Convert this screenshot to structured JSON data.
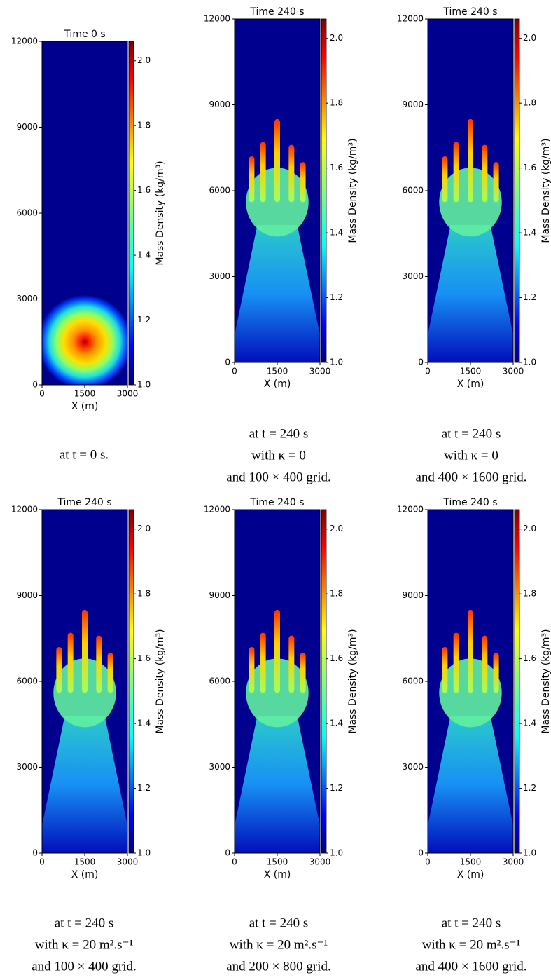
{
  "panels": [
    {
      "title": "Time 0 s",
      "x_label": "X (m)",
      "colorbar_label": "Mass Density (kg/m³)",
      "xlim": [
        0,
        3000
      ],
      "xticks": [
        0,
        1500,
        3000
      ],
      "ylim": [
        0,
        12000
      ],
      "yticks": [
        0,
        3000,
        6000,
        9000,
        12000
      ],
      "clim": [
        1.0,
        2.06
      ],
      "cticks": [
        {
          "value": 1.0,
          "label": "1.0"
        },
        1.2,
        1.4,
        1.6,
        1.8,
        {
          "value": 2.0,
          "label": "2.0"
        }
      ],
      "caption": [
        "at t = 0 s."
      ]
    },
    {
      "title": "Time 240 s",
      "x_label": "X (m)",
      "colorbar_label": "Mass Density (kg/m³)",
      "xlim": [
        0,
        3000
      ],
      "xticks": [
        0,
        1500,
        3000
      ],
      "ylim": [
        0,
        12000
      ],
      "yticks": [
        0,
        3000,
        6000,
        9000,
        12000
      ],
      "clim": [
        1.0,
        2.06
      ],
      "cticks": [
        {
          "value": 1.0,
          "label": "1.0"
        },
        1.2,
        1.4,
        1.6,
        1.8,
        {
          "value": 2.0,
          "label": "2.0"
        }
      ],
      "caption": [
        "at t = 240 s",
        "with κ = 0",
        "and 100 × 400 grid."
      ]
    },
    {
      "title": "Time 240 s",
      "x_label": "X (m)",
      "colorbar_label": "Mass Density (kg/m³)",
      "xlim": [
        0,
        3000
      ],
      "xticks": [
        0,
        1500,
        3000
      ],
      "ylim": [
        0,
        12000
      ],
      "yticks": [
        0,
        3000,
        6000,
        9000,
        12000
      ],
      "clim": [
        1.0,
        2.06
      ],
      "cticks": [
        {
          "value": 1.0,
          "label": "1.0"
        },
        1.2,
        1.4,
        1.6,
        1.8,
        {
          "value": 2.0,
          "label": "2.0"
        }
      ],
      "caption": [
        "at t = 240 s",
        "with κ = 0",
        "and 400 × 1600 grid."
      ]
    },
    {
      "title": "Time 240 s",
      "x_label": "X (m)",
      "colorbar_label": "Mass Density (kg/m³)",
      "xlim": [
        0,
        3000
      ],
      "xticks": [
        0,
        1500,
        3000
      ],
      "ylim": [
        0,
        12000
      ],
      "yticks": [
        0,
        3000,
        6000,
        9000,
        12000
      ],
      "clim": [
        1.0,
        2.06
      ],
      "cticks": [
        {
          "value": 1.0,
          "label": "1.0"
        },
        1.2,
        1.4,
        1.6,
        1.8,
        {
          "value": 2.0,
          "label": "2.0"
        }
      ],
      "caption": [
        "at t = 240 s",
        "with κ = 20 m².s⁻¹",
        "and 100 × 400 grid."
      ]
    },
    {
      "title": "Time 240 s",
      "x_label": "X (m)",
      "colorbar_label": "Mass Density (kg/m³)",
      "xlim": [
        0,
        3000
      ],
      "xticks": [
        0,
        1500,
        3000
      ],
      "ylim": [
        0,
        12000
      ],
      "yticks": [
        0,
        3000,
        6000,
        9000,
        12000
      ],
      "clim": [
        1.0,
        2.06
      ],
      "cticks": [
        {
          "value": 1.0,
          "label": "1.0"
        },
        1.2,
        1.4,
        1.6,
        1.8,
        {
          "value": 2.0,
          "label": "2.0"
        }
      ],
      "caption": [
        "at t = 240 s",
        "with κ = 20 m².s⁻¹",
        "and 200 × 800 grid."
      ]
    },
    {
      "title": "Time 240 s",
      "x_label": "X (m)",
      "colorbar_label": "Mass Density (kg/m³)",
      "xlim": [
        0,
        3000
      ],
      "xticks": [
        0,
        1500,
        3000
      ],
      "ylim": [
        0,
        12000
      ],
      "yticks": [
        0,
        3000,
        6000,
        9000,
        12000
      ],
      "clim": [
        1.0,
        2.06
      ],
      "cticks": [
        {
          "value": 1.0,
          "label": "1.0"
        },
        1.2,
        1.4,
        1.6,
        1.8,
        {
          "value": 2.0,
          "label": "2.0"
        }
      ],
      "caption": [
        "at t = 240 s",
        "with κ = 20 m².s⁻¹",
        "and 400 × 1600 grid."
      ]
    }
  ]
}
